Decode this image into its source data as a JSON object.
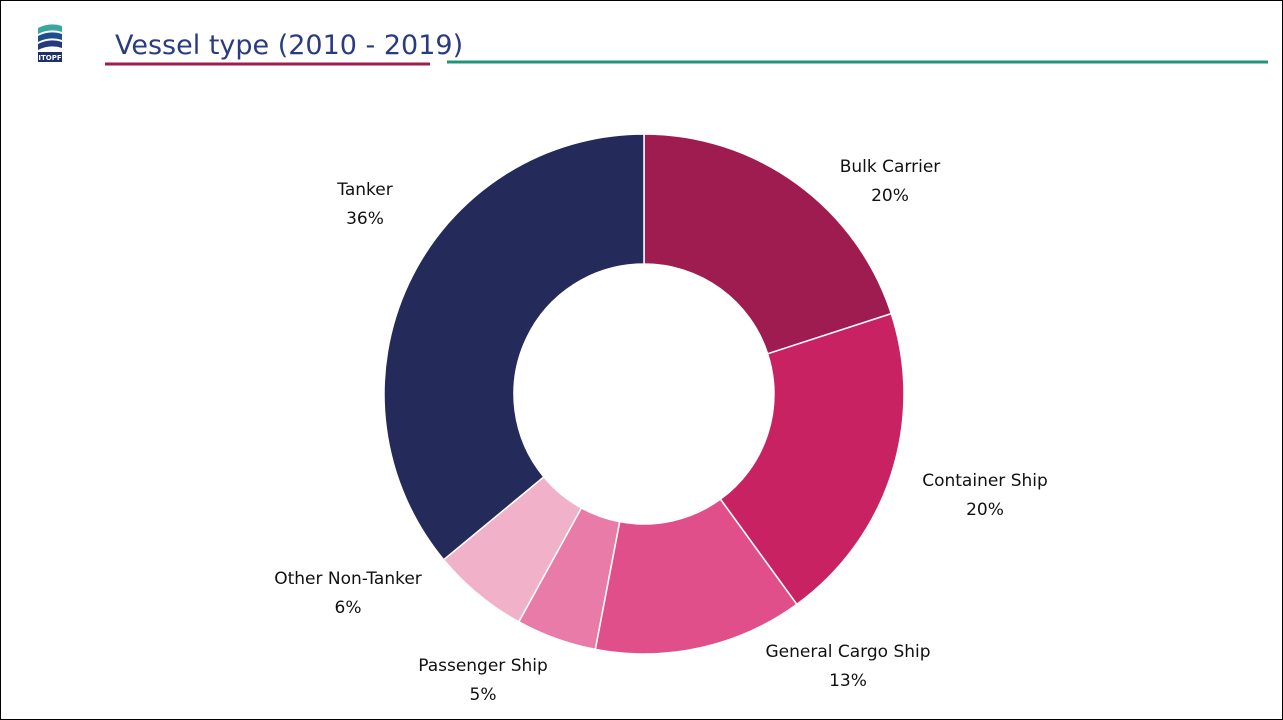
{
  "logo_text": "ITOPF",
  "chart_data": {
    "type": "donut",
    "title": "Vessel type (2010 - 2019)",
    "categories": [
      "Bulk Carrier",
      "Container Ship",
      "General Cargo Ship",
      "Passenger Ship",
      "Other Non-Tanker",
      "Tanker"
    ],
    "values": [
      20,
      20,
      13,
      5,
      6,
      36
    ],
    "value_labels": [
      "20%",
      "20%",
      "13%",
      "5%",
      "6%",
      "36%"
    ],
    "colors": [
      "#9e1c4f",
      "#c82263",
      "#e04f8a",
      "#e87ba7",
      "#f0b1c9",
      "#242b5a"
    ]
  }
}
